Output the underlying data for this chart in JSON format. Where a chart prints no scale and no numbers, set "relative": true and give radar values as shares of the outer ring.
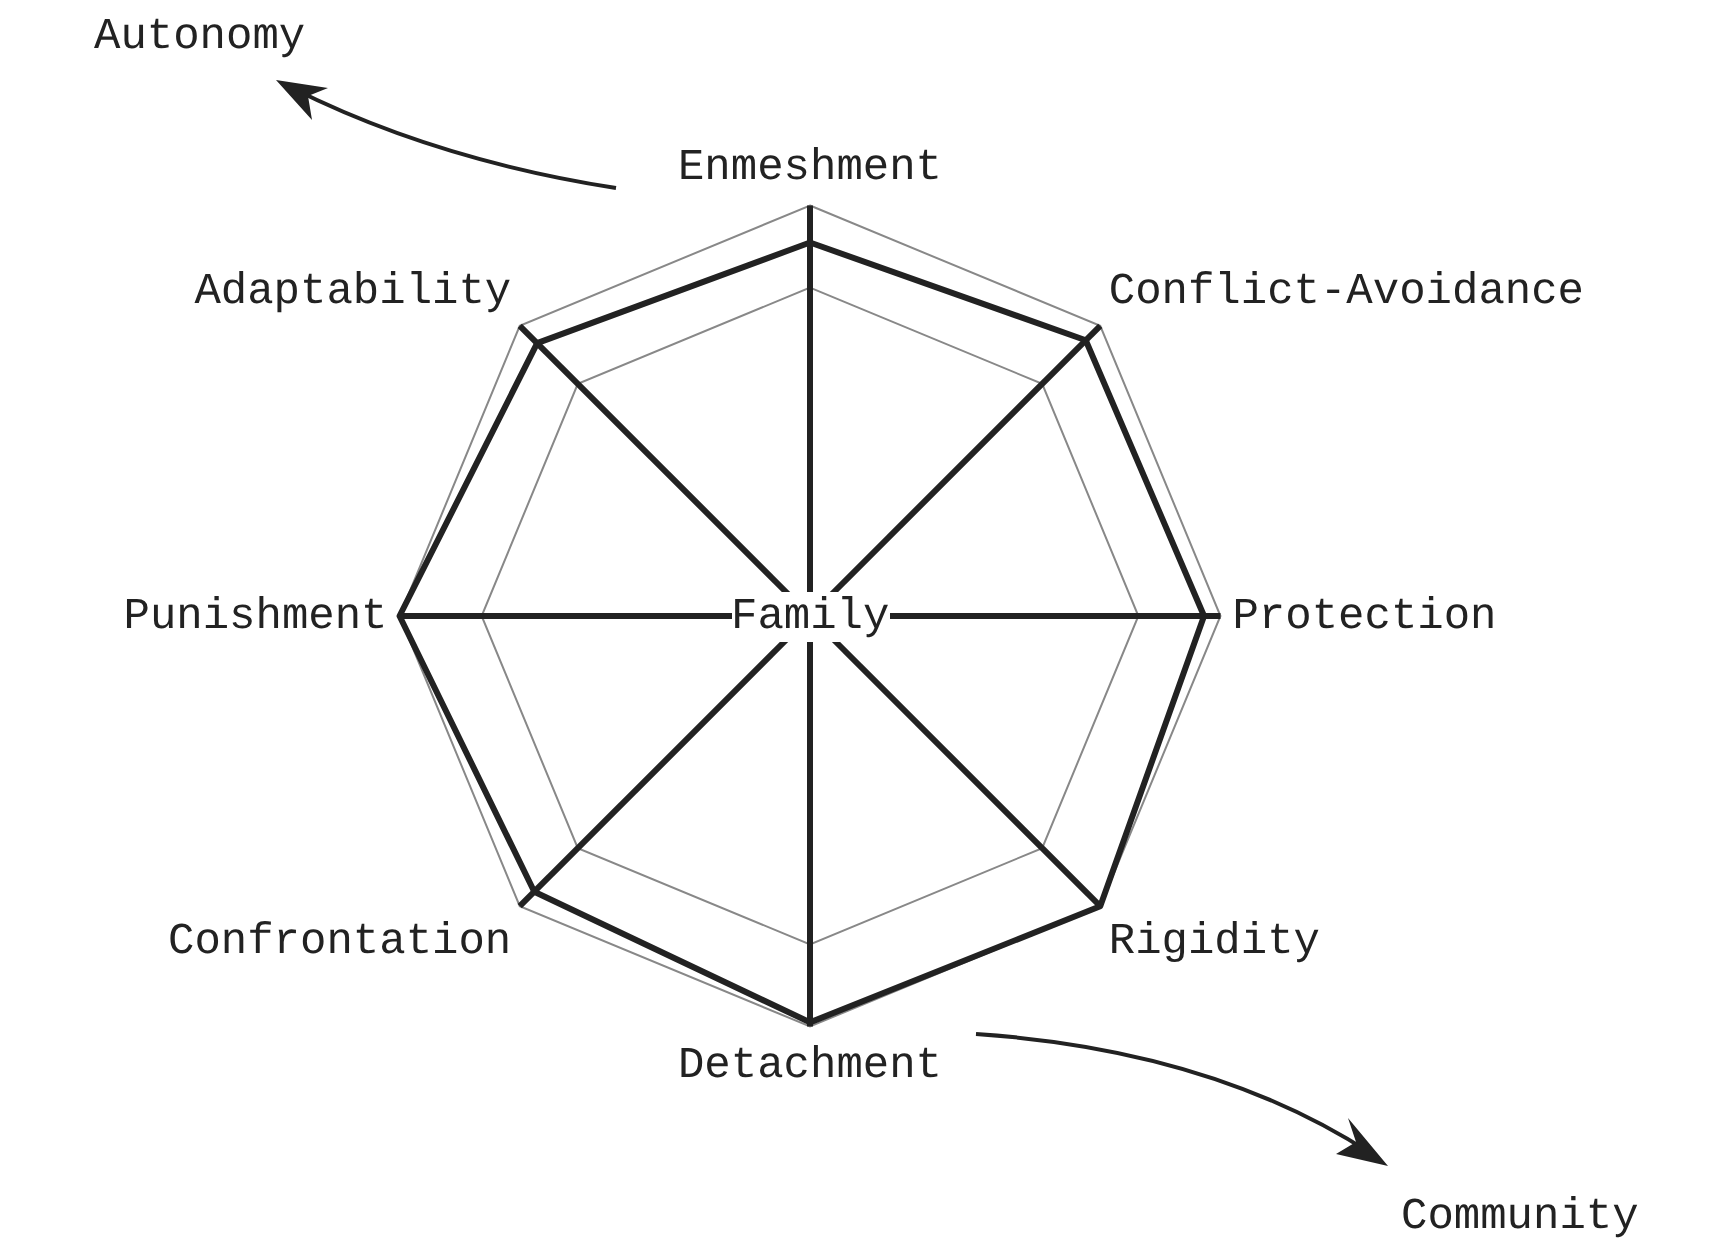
{
  "chart_data": {
    "type": "radar",
    "relative": true,
    "categories": [
      "Enmeshment",
      "Conflict-Avoidance",
      "Protection",
      "Rigidity",
      "Detachment",
      "Confrontation",
      "Punishment",
      "Adaptability"
    ],
    "series": [
      {
        "color": "#222222",
        "values": [
          0.91,
          0.95,
          0.96,
          1.0,
          0.99,
          0.95,
          1.0,
          0.94
        ]
      }
    ],
    "grid": true,
    "legend": false,
    "marker": "none",
    "line_style": "solid",
    "annotations": [
      "Family",
      "Autonomy",
      "Community"
    ]
  }
}
